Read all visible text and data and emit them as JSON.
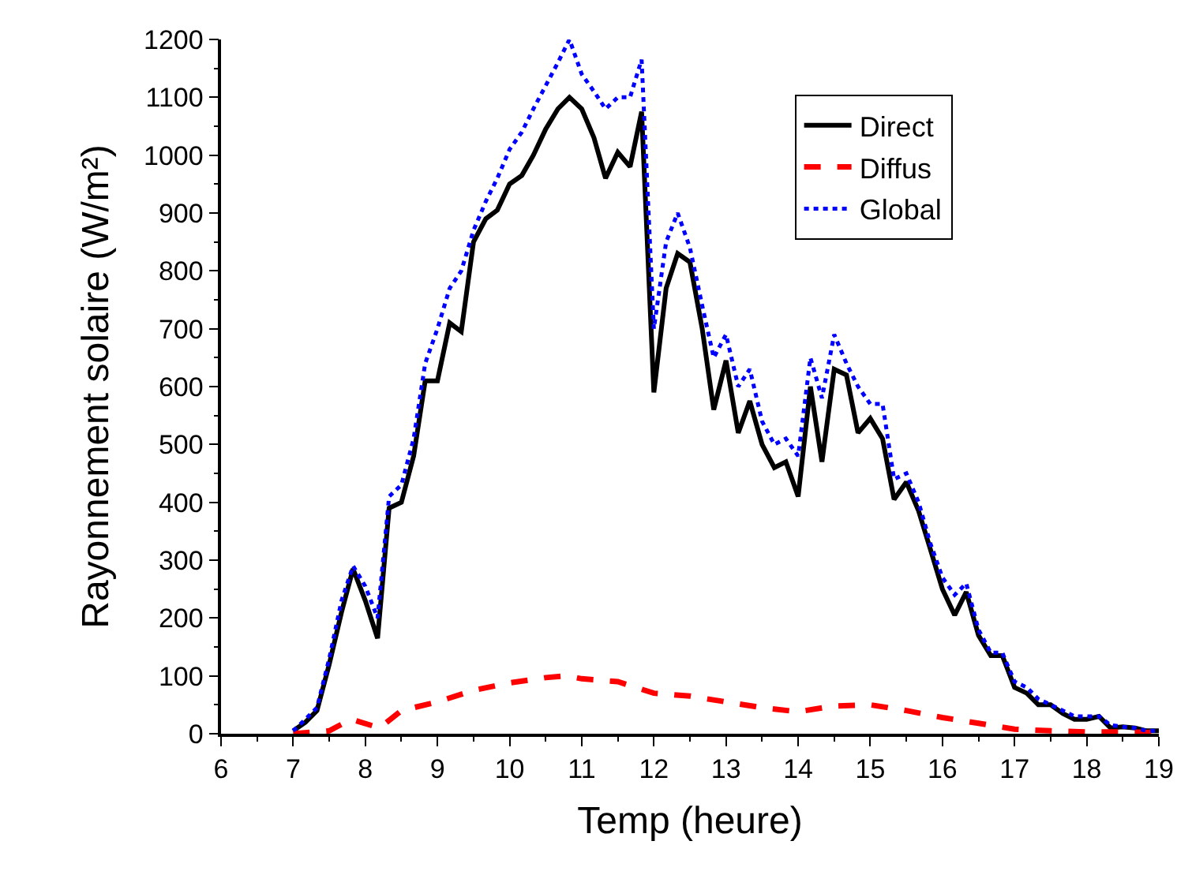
{
  "chart_data": {
    "type": "line",
    "xlabel": "Temp (heure)",
    "ylabel": "Rayonnement solaire (W/m²)",
    "xlim": [
      6,
      19
    ],
    "xticks": [
      6,
      7,
      8,
      9,
      10,
      11,
      12,
      13,
      14,
      15,
      16,
      17,
      18,
      19
    ],
    "ylim": [
      0,
      1200
    ],
    "yticks": [
      0,
      100,
      200,
      300,
      400,
      500,
      600,
      700,
      800,
      900,
      1000,
      1100,
      1200
    ],
    "grid": false,
    "legend": "top right",
    "series": [
      {
        "name": "Direct",
        "color": "#000000",
        "line_style": "solid",
        "x": [
          7.0,
          7.17,
          7.33,
          7.5,
          7.67,
          7.83,
          8.0,
          8.17,
          8.33,
          8.5,
          8.67,
          8.83,
          9.0,
          9.17,
          9.33,
          9.5,
          9.67,
          9.83,
          10.0,
          10.17,
          10.33,
          10.5,
          10.67,
          10.83,
          11.0,
          11.17,
          11.33,
          11.5,
          11.67,
          11.83,
          12.0,
          12.17,
          12.33,
          12.5,
          12.67,
          12.83,
          13.0,
          13.17,
          13.33,
          13.5,
          13.67,
          13.83,
          14.0,
          14.17,
          14.33,
          14.5,
          14.67,
          14.83,
          15.0,
          15.17,
          15.33,
          15.5,
          15.67,
          15.83,
          16.0,
          16.17,
          16.33,
          16.5,
          16.67,
          16.83,
          17.0,
          17.17,
          17.33,
          17.5,
          17.67,
          17.83,
          18.0,
          18.17,
          18.33,
          18.5,
          18.67,
          18.83,
          19.0
        ],
        "values": [
          5,
          20,
          40,
          120,
          210,
          285,
          230,
          165,
          390,
          400,
          480,
          610,
          610,
          710,
          695,
          850,
          890,
          905,
          950,
          965,
          1000,
          1045,
          1080,
          1100,
          1080,
          1030,
          960,
          1005,
          980,
          1075,
          590,
          770,
          830,
          815,
          700,
          560,
          645,
          520,
          575,
          500,
          460,
          470,
          410,
          600,
          470,
          630,
          620,
          520,
          545,
          510,
          405,
          435,
          385,
          320,
          250,
          205,
          245,
          170,
          135,
          135,
          80,
          70,
          50,
          50,
          35,
          25,
          25,
          30,
          10,
          12,
          10,
          5,
          5
        ]
      },
      {
        "name": "Diffus",
        "color": "#ff0000",
        "line_style": "dashed",
        "x": [
          7.0,
          7.5,
          7.8,
          8.2,
          8.5,
          9.0,
          9.5,
          10.0,
          10.5,
          10.8,
          11.0,
          11.5,
          12.0,
          12.5,
          13.0,
          13.5,
          14.0,
          14.5,
          15.0,
          15.5,
          16.0,
          16.5,
          17.0,
          17.5,
          18.0,
          18.5,
          19.0
        ],
        "values": [
          0,
          5,
          25,
          10,
          40,
          55,
          75,
          88,
          97,
          100,
          95,
          90,
          70,
          65,
          55,
          45,
          38,
          48,
          50,
          40,
          28,
          18,
          8,
          5,
          3,
          3,
          2
        ]
      },
      {
        "name": "Global",
        "color": "#0000ff",
        "line_style": "dotted",
        "x": [
          7.0,
          7.17,
          7.33,
          7.5,
          7.67,
          7.83,
          8.0,
          8.17,
          8.33,
          8.5,
          8.67,
          8.83,
          9.0,
          9.17,
          9.33,
          9.5,
          9.67,
          9.83,
          10.0,
          10.17,
          10.33,
          10.5,
          10.67,
          10.83,
          11.0,
          11.17,
          11.33,
          11.5,
          11.67,
          11.83,
          12.0,
          12.17,
          12.33,
          12.5,
          12.67,
          12.83,
          13.0,
          13.17,
          13.33,
          13.5,
          13.67,
          13.83,
          14.0,
          14.17,
          14.33,
          14.5,
          14.67,
          14.83,
          15.0,
          15.17,
          15.33,
          15.5,
          15.67,
          15.83,
          16.0,
          16.17,
          16.33,
          16.5,
          16.67,
          16.83,
          17.0,
          17.17,
          17.33,
          17.5,
          17.67,
          17.83,
          18.0,
          18.17,
          18.33,
          18.5,
          18.67,
          18.83,
          19.0
        ],
        "values": [
          5,
          25,
          45,
          130,
          230,
          290,
          255,
          200,
          410,
          430,
          510,
          640,
          700,
          770,
          800,
          870,
          920,
          960,
          1010,
          1040,
          1080,
          1120,
          1160,
          1200,
          1140,
          1110,
          1080,
          1100,
          1100,
          1165,
          700,
          850,
          900,
          840,
          740,
          650,
          690,
          600,
          630,
          540,
          500,
          510,
          480,
          650,
          580,
          690,
          640,
          600,
          570,
          570,
          440,
          450,
          400,
          330,
          270,
          240,
          260,
          180,
          140,
          140,
          90,
          80,
          60,
          50,
          40,
          30,
          30,
          30,
          15,
          12,
          10,
          5,
          5
        ]
      }
    ]
  }
}
